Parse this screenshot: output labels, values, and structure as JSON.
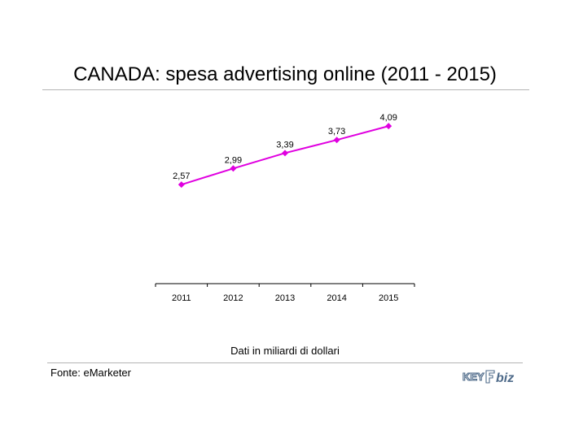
{
  "header": {
    "title": "CANADA: spesa advertising online (2011 - 2015)"
  },
  "footer": {
    "note": "Dati in miliardi di dollari",
    "source": "Fonte: eMarketer",
    "logo_text": "KEY4biz"
  },
  "colors": {
    "series": "#e000e0",
    "axis": "#000000",
    "rule": "#b4b4b4",
    "logo": "#4f6b8a"
  },
  "chart_data": {
    "type": "line",
    "categories": [
      "2011",
      "2012",
      "2013",
      "2014",
      "2015"
    ],
    "series": [
      {
        "values": [
          2.57,
          2.99,
          3.39,
          3.73,
          4.09
        ],
        "labels": [
          "2,57",
          "2,99",
          "3,39",
          "3,73",
          "4,09"
        ]
      }
    ],
    "title": "CANADA: spesa advertising online (2011 - 2015)",
    "xlabel": "",
    "ylabel": "",
    "ylim": [
      0,
      5
    ],
    "grid": false,
    "legend": "none"
  }
}
